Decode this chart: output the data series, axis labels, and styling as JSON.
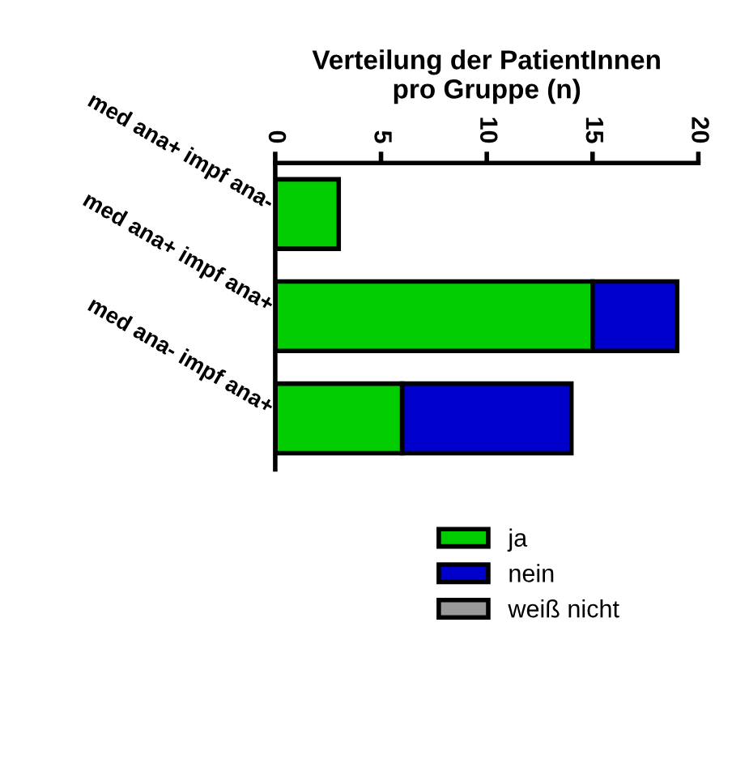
{
  "chart_data": {
    "type": "bar",
    "orientation": "horizontal",
    "stacked": true,
    "title": "Verteilung der PatientInnen\npro Gruppe (n)",
    "categories": [
      "med ana+ impf ana-",
      "med ana+ impf ana+",
      "med ana- impf ana+"
    ],
    "series": [
      {
        "name": "ja",
        "color": "#00cc00",
        "values": [
          3,
          15,
          6
        ]
      },
      {
        "name": "nein",
        "color": "#0000cc",
        "values": [
          0,
          4,
          8
        ]
      },
      {
        "name": "weiß nicht",
        "color": "#999999",
        "values": [
          0,
          0,
          0
        ]
      }
    ],
    "xlim": [
      0,
      20
    ],
    "xticks": [
      0,
      5,
      10,
      15,
      20
    ],
    "grid": false,
    "legend": "bottom"
  }
}
